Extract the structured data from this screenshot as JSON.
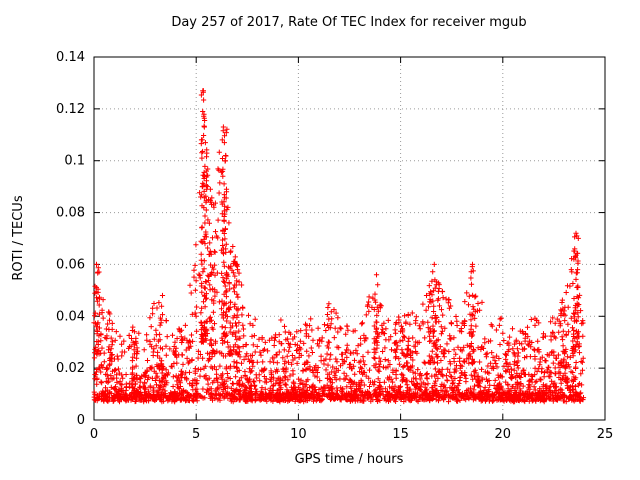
{
  "chart_data": {
    "type": "scatter",
    "title": "Day 257 of 2017, Rate Of TEC Index for receiver mgub",
    "xlabel": "GPS time / hours",
    "ylabel": "ROTI / TECUs",
    "xlim": [
      0,
      25
    ],
    "ylim": [
      0,
      0.14
    ],
    "xticks": [
      0,
      5,
      10,
      15,
      20,
      25
    ],
    "xtick_labels": [
      "0",
      "5",
      "10",
      "15",
      "20",
      "25"
    ],
    "yticks": [
      0,
      0.02,
      0.04,
      0.06,
      0.08,
      0.1,
      0.12,
      0.14
    ],
    "ytick_labels": [
      "0",
      "0.02",
      "0.04",
      "0.06",
      "0.08",
      "0.1",
      "0.12",
      "0.14"
    ],
    "grid": true,
    "legend": "none",
    "marker": "plus",
    "marker_color": "#ff0000",
    "grid_color": "#9a9a9a",
    "axis_color": "#000000",
    "x_data_range": [
      0,
      23.95
    ],
    "seed": 257,
    "n_background_points": 3200,
    "baseline_min": 0.007,
    "baseline_exponent": 3.2,
    "envelope": {
      "x": [
        0,
        0.2,
        0.5,
        1,
        1.5,
        2,
        2.5,
        2.9,
        3.3,
        3.8,
        4.3,
        4.8,
        5.1,
        5.35,
        5.6,
        5.9,
        6.2,
        6.45,
        6.7,
        7.0,
        7.5,
        8,
        8.5,
        9,
        9.5,
        10,
        10.5,
        11,
        11.5,
        12,
        12.5,
        13,
        13.5,
        13.8,
        14.2,
        14.7,
        15.2,
        15.7,
        16.2,
        16.6,
        17,
        17.5,
        18,
        18.5,
        19,
        19.5,
        20,
        20.5,
        21,
        21.5,
        22,
        22.5,
        23,
        23.3,
        23.6,
        23.9
      ],
      "y": [
        0.06,
        0.055,
        0.048,
        0.035,
        0.03,
        0.036,
        0.03,
        0.046,
        0.048,
        0.032,
        0.04,
        0.055,
        0.08,
        0.127,
        0.1,
        0.085,
        0.113,
        0.1,
        0.07,
        0.06,
        0.042,
        0.038,
        0.035,
        0.04,
        0.036,
        0.034,
        0.04,
        0.035,
        0.045,
        0.04,
        0.035,
        0.034,
        0.05,
        0.056,
        0.04,
        0.036,
        0.045,
        0.04,
        0.046,
        0.058,
        0.05,
        0.045,
        0.04,
        0.06,
        0.045,
        0.036,
        0.04,
        0.035,
        0.034,
        0.04,
        0.035,
        0.04,
        0.046,
        0.06,
        0.072,
        0.048
      ]
    },
    "bursts": [
      {
        "x": 5.38,
        "width": 0.28,
        "n": 80,
        "ymin": 0.03,
        "ymax": 0.127
      },
      {
        "x": 6.38,
        "width": 0.26,
        "n": 55,
        "ymin": 0.03,
        "ymax": 0.113
      },
      {
        "x": 5.8,
        "width": 0.3,
        "n": 30,
        "ymin": 0.025,
        "ymax": 0.085
      },
      {
        "x": 6.9,
        "width": 0.5,
        "n": 40,
        "ymin": 0.025,
        "ymax": 0.065
      },
      {
        "x": 23.6,
        "width": 0.3,
        "n": 40,
        "ymin": 0.028,
        "ymax": 0.072
      },
      {
        "x": 0.15,
        "width": 0.25,
        "n": 30,
        "ymin": 0.025,
        "ymax": 0.06
      },
      {
        "x": 16.6,
        "width": 0.55,
        "n": 45,
        "ymin": 0.022,
        "ymax": 0.058
      },
      {
        "x": 18.5,
        "width": 0.25,
        "n": 18,
        "ymin": 0.022,
        "ymax": 0.06
      },
      {
        "x": 13.8,
        "width": 0.2,
        "n": 14,
        "ymin": 0.022,
        "ymax": 0.056
      },
      {
        "x": 3.1,
        "width": 0.5,
        "n": 20,
        "ymin": 0.018,
        "ymax": 0.048
      },
      {
        "x": 23.0,
        "width": 0.4,
        "n": 25,
        "ymin": 0.02,
        "ymax": 0.05
      },
      {
        "x": 2.0,
        "width": 0.3,
        "n": 12,
        "ymin": 0.015,
        "ymax": 0.036
      },
      {
        "x": 11.5,
        "width": 0.3,
        "n": 12,
        "ymin": 0.015,
        "ymax": 0.044
      },
      {
        "x": 15.2,
        "width": 0.3,
        "n": 12,
        "ymin": 0.015,
        "ymax": 0.044
      }
    ],
    "extreme_points": [
      [
        5.35,
        0.127
      ],
      [
        5.32,
        0.119
      ],
      [
        5.4,
        0.113
      ],
      [
        5.45,
        0.107
      ],
      [
        5.28,
        0.101
      ],
      [
        5.5,
        0.096
      ],
      [
        6.33,
        0.113
      ],
      [
        6.38,
        0.107
      ],
      [
        6.43,
        0.1
      ],
      [
        6.3,
        0.094
      ],
      [
        6.48,
        0.089
      ],
      [
        5.55,
        0.09
      ],
      [
        5.6,
        0.085
      ],
      [
        5.22,
        0.086
      ],
      [
        6.55,
        0.082
      ],
      [
        6.6,
        0.076
      ],
      [
        7.0,
        0.06
      ],
      [
        23.58,
        0.072
      ],
      [
        23.62,
        0.071
      ],
      [
        23.52,
        0.066
      ],
      [
        23.48,
        0.062
      ],
      [
        23.66,
        0.058
      ],
      [
        0.12,
        0.06
      ],
      [
        0.18,
        0.057
      ],
      [
        16.65,
        0.06
      ],
      [
        18.52,
        0.06
      ],
      [
        13.82,
        0.056
      ],
      [
        3.35,
        0.048
      ]
    ]
  }
}
